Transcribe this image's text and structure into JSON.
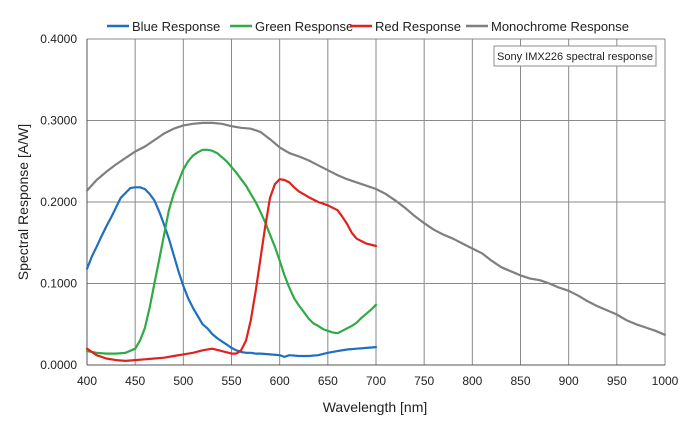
{
  "chart_data": {
    "type": "line",
    "title": "",
    "annotation": "Sony IMX226 spectral response",
    "xlabel": "Wavelength [nm]",
    "ylabel": "Spectral Response [A/W]",
    "xlim": [
      400,
      1000
    ],
    "ylim": [
      0,
      0.4
    ],
    "xticks": [
      400,
      450,
      500,
      550,
      600,
      650,
      700,
      750,
      800,
      850,
      900,
      950,
      1000
    ],
    "xtick_labels": [
      "400",
      "450",
      "500",
      "550",
      "600",
      "650",
      "700",
      "750",
      "800",
      "850",
      "900",
      "950",
      "1000"
    ],
    "yticks": [
      0,
      0.1,
      0.2,
      0.3,
      0.4
    ],
    "ytick_labels": [
      "0.0000",
      "0.1000",
      "0.2000",
      "0.3000",
      "0.4000"
    ],
    "grid": true,
    "legend_position": "top",
    "series": [
      {
        "name": "Blue Response",
        "color": "#1f6fc0",
        "x": [
          400,
          405,
          410,
          415,
          420,
          425,
          430,
          435,
          440,
          445,
          450,
          455,
          460,
          465,
          470,
          475,
          480,
          485,
          490,
          495,
          500,
          505,
          510,
          515,
          520,
          525,
          530,
          535,
          540,
          545,
          550,
          555,
          560,
          565,
          570,
          575,
          580,
          590,
          600,
          605,
          610,
          620,
          630,
          640,
          650,
          660,
          670,
          680,
          690,
          700
        ],
        "y": [
          0.118,
          0.133,
          0.145,
          0.158,
          0.17,
          0.181,
          0.193,
          0.205,
          0.211,
          0.217,
          0.218,
          0.218,
          0.216,
          0.21,
          0.202,
          0.188,
          0.172,
          0.155,
          0.135,
          0.115,
          0.097,
          0.082,
          0.07,
          0.06,
          0.05,
          0.045,
          0.038,
          0.033,
          0.029,
          0.025,
          0.021,
          0.018,
          0.016,
          0.015,
          0.015,
          0.014,
          0.014,
          0.013,
          0.012,
          0.01,
          0.012,
          0.011,
          0.011,
          0.012,
          0.015,
          0.017,
          0.019,
          0.02,
          0.021,
          0.022
        ]
      },
      {
        "name": "Green Response",
        "color": "#2eab45",
        "x": [
          400,
          410,
          420,
          430,
          440,
          450,
          455,
          460,
          465,
          470,
          475,
          480,
          485,
          490,
          495,
          500,
          505,
          510,
          515,
          520,
          525,
          530,
          535,
          540,
          545,
          550,
          555,
          560,
          565,
          570,
          575,
          580,
          585,
          590,
          595,
          600,
          605,
          610,
          615,
          620,
          625,
          630,
          635,
          640,
          645,
          650,
          655,
          660,
          665,
          670,
          675,
          680,
          685,
          690,
          695,
          700
        ],
        "y": [
          0.017,
          0.015,
          0.014,
          0.014,
          0.015,
          0.02,
          0.03,
          0.045,
          0.07,
          0.1,
          0.13,
          0.16,
          0.19,
          0.21,
          0.225,
          0.24,
          0.25,
          0.257,
          0.261,
          0.264,
          0.264,
          0.263,
          0.26,
          0.255,
          0.25,
          0.243,
          0.236,
          0.228,
          0.22,
          0.21,
          0.2,
          0.188,
          0.175,
          0.16,
          0.145,
          0.128,
          0.11,
          0.095,
          0.082,
          0.073,
          0.065,
          0.057,
          0.051,
          0.048,
          0.044,
          0.042,
          0.04,
          0.039,
          0.042,
          0.045,
          0.048,
          0.052,
          0.058,
          0.063,
          0.068,
          0.074
        ]
      },
      {
        "name": "Red Response",
        "color": "#e0211d",
        "x": [
          400,
          410,
          420,
          430,
          440,
          450,
          460,
          470,
          480,
          490,
          500,
          510,
          520,
          530,
          540,
          550,
          555,
          560,
          565,
          570,
          575,
          580,
          585,
          590,
          595,
          600,
          605,
          610,
          615,
          620,
          630,
          640,
          650,
          660,
          665,
          670,
          675,
          680,
          690,
          700
        ],
        "y": [
          0.02,
          0.012,
          0.008,
          0.006,
          0.005,
          0.006,
          0.007,
          0.008,
          0.009,
          0.011,
          0.013,
          0.015,
          0.018,
          0.02,
          0.017,
          0.014,
          0.014,
          0.018,
          0.03,
          0.055,
          0.09,
          0.13,
          0.17,
          0.205,
          0.222,
          0.228,
          0.227,
          0.224,
          0.218,
          0.213,
          0.206,
          0.2,
          0.196,
          0.19,
          0.182,
          0.173,
          0.162,
          0.155,
          0.149,
          0.146
        ]
      },
      {
        "name": "Monochrome Response",
        "color": "#7f7f7f",
        "x": [
          400,
          410,
          420,
          430,
          440,
          450,
          460,
          470,
          480,
          490,
          500,
          510,
          520,
          530,
          540,
          550,
          560,
          570,
          580,
          590,
          600,
          610,
          620,
          630,
          640,
          650,
          660,
          670,
          680,
          690,
          700,
          710,
          720,
          730,
          740,
          750,
          760,
          770,
          780,
          790,
          800,
          810,
          820,
          830,
          840,
          850,
          860,
          870,
          880,
          890,
          900,
          910,
          920,
          930,
          940,
          950,
          960,
          970,
          980,
          990,
          1000
        ],
        "y": [
          0.214,
          0.227,
          0.237,
          0.246,
          0.254,
          0.262,
          0.268,
          0.276,
          0.284,
          0.29,
          0.294,
          0.296,
          0.297,
          0.297,
          0.296,
          0.293,
          0.291,
          0.29,
          0.286,
          0.277,
          0.267,
          0.26,
          0.256,
          0.251,
          0.245,
          0.239,
          0.233,
          0.228,
          0.224,
          0.22,
          0.216,
          0.21,
          0.202,
          0.193,
          0.183,
          0.174,
          0.166,
          0.16,
          0.155,
          0.149,
          0.143,
          0.137,
          0.128,
          0.12,
          0.115,
          0.11,
          0.106,
          0.104,
          0.1,
          0.095,
          0.091,
          0.085,
          0.078,
          0.072,
          0.067,
          0.062,
          0.055,
          0.05,
          0.046,
          0.042,
          0.037
        ]
      }
    ]
  }
}
